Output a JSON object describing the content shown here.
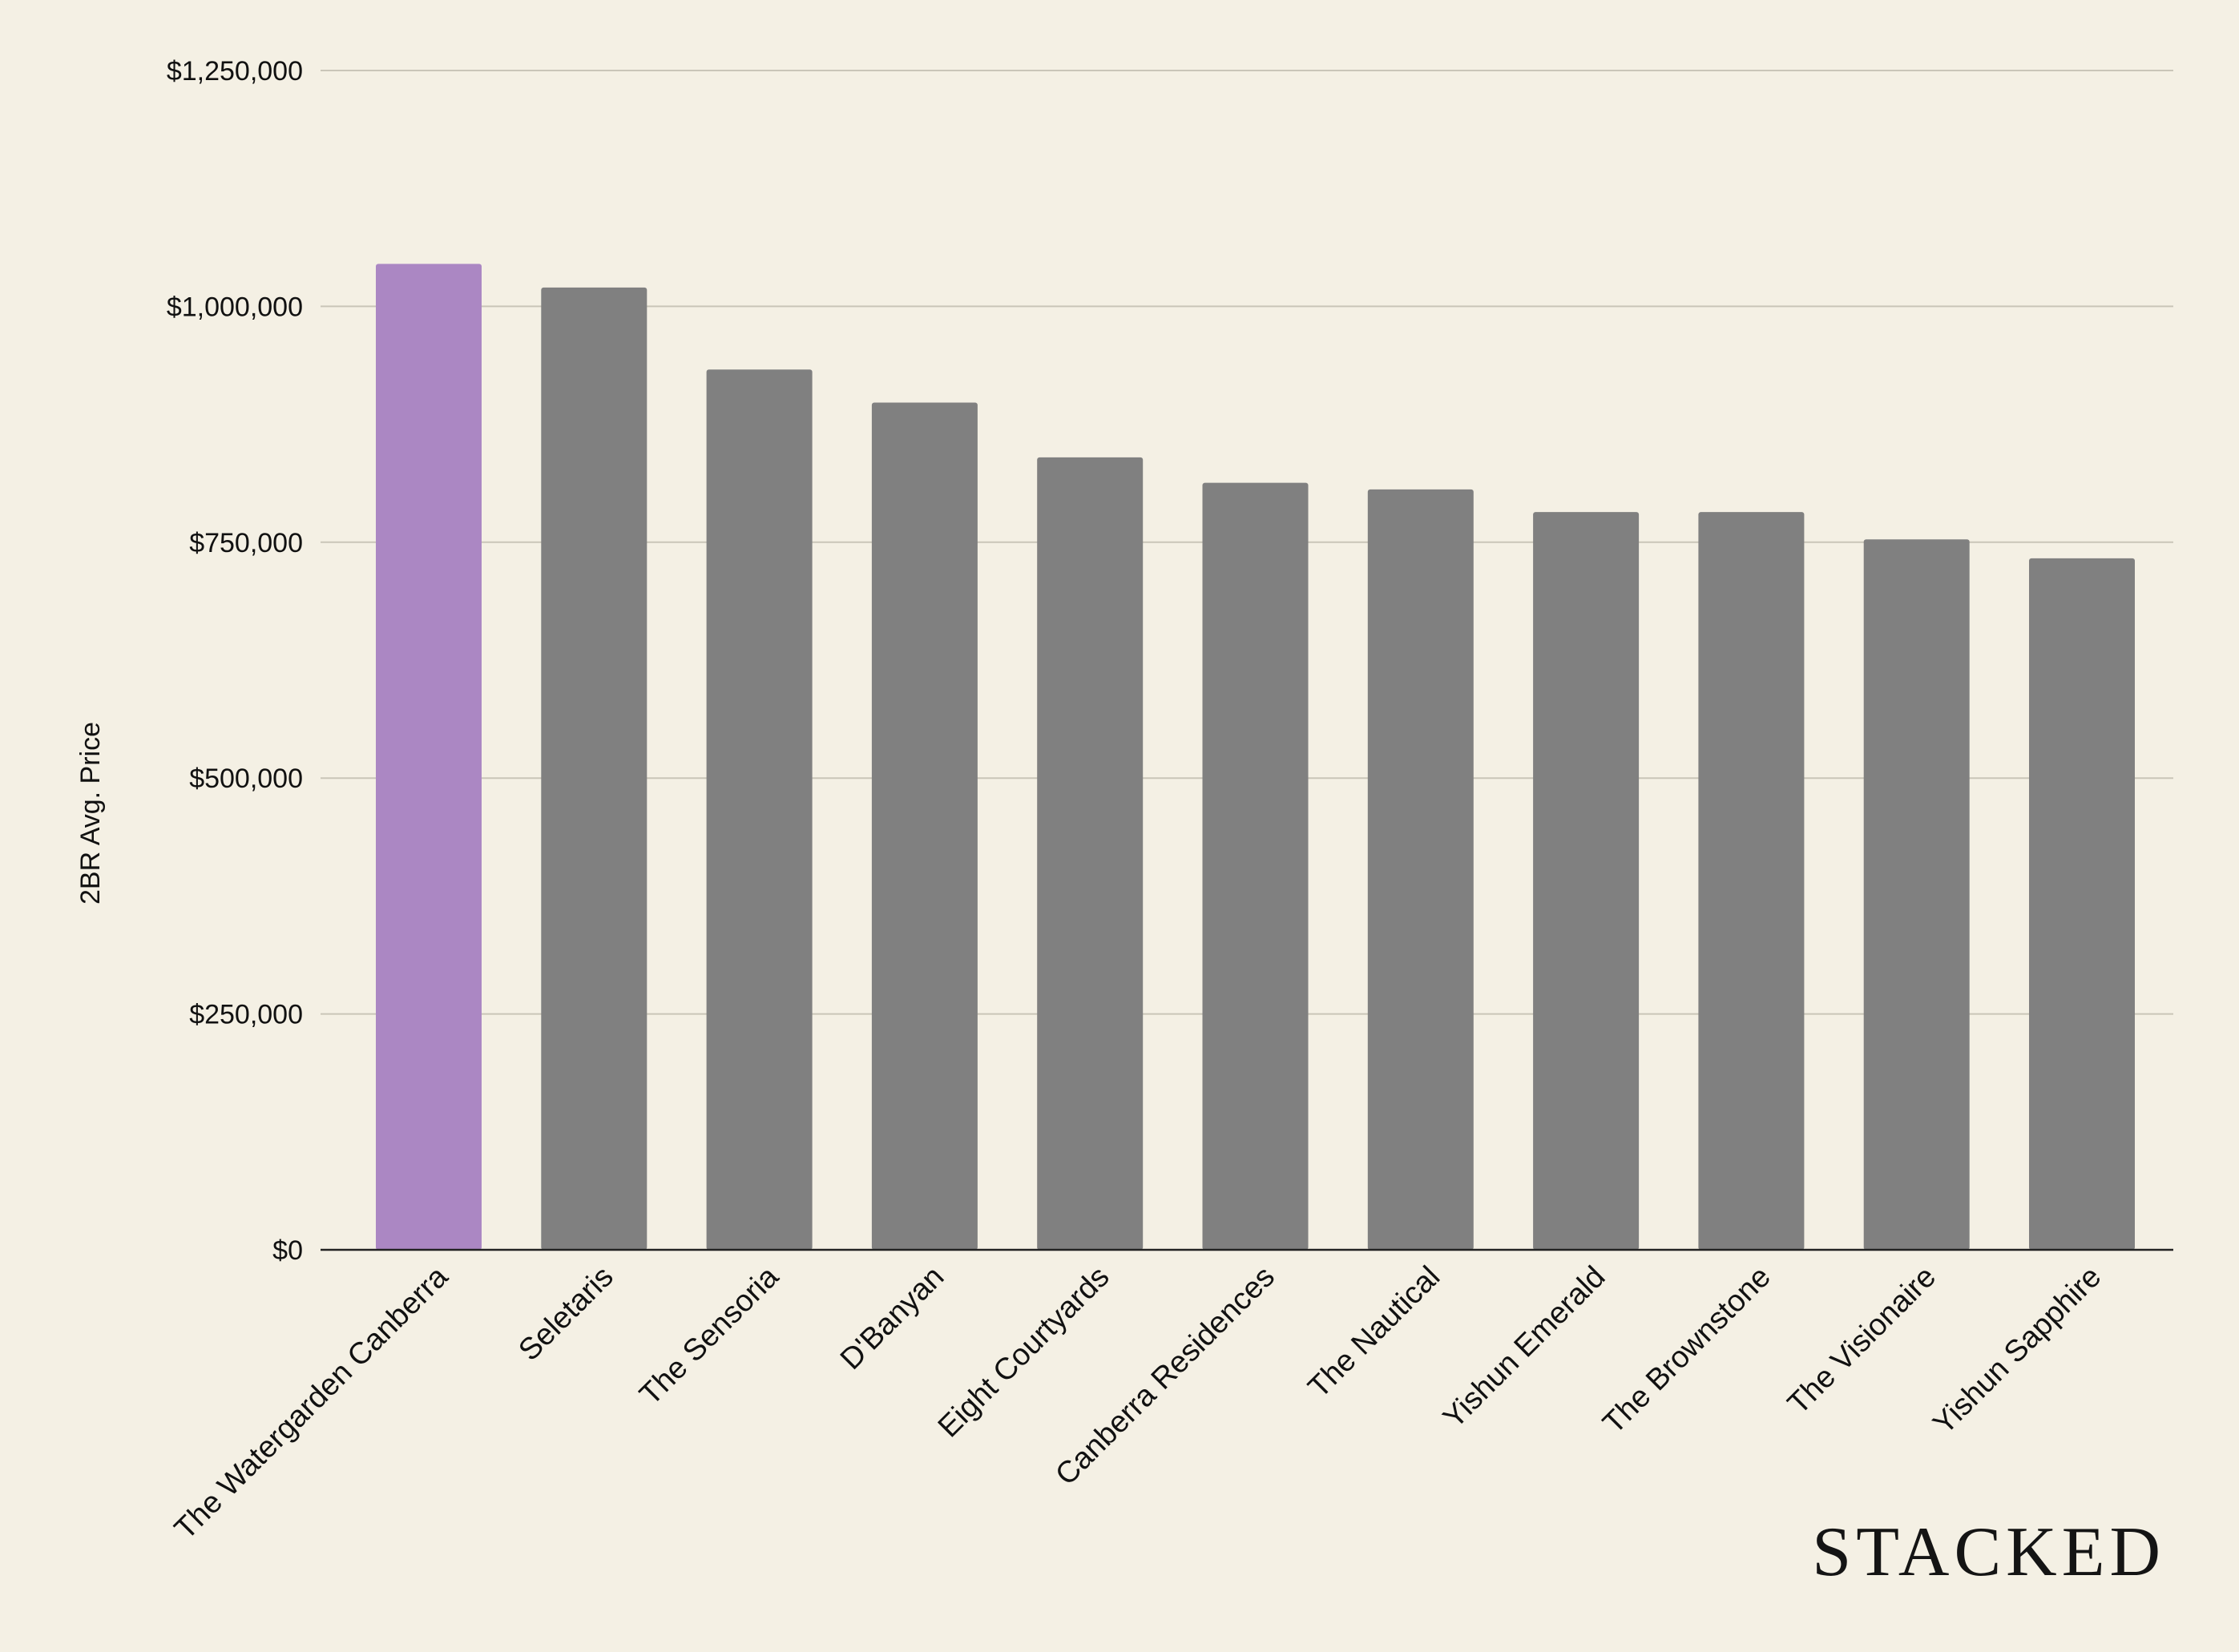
{
  "chart_data": {
    "type": "bar",
    "title": "",
    "xlabel": "",
    "ylabel": "2BR Avg. Price",
    "ylim": [
      0,
      1250000
    ],
    "yticks": [
      0,
      250000,
      500000,
      750000,
      1000000,
      1250000
    ],
    "ytick_labels": [
      "$0",
      "$250,000",
      "$500,000",
      "$750,000",
      "$1,000,000",
      "$1,250,000"
    ],
    "grid": true,
    "categories": [
      "The Watergarden Canberra",
      "Seletaris",
      "The Sensoria",
      "D'Banyan",
      "Eight Courtyards",
      "Canberra Residences",
      "The Nautical",
      "Yishun Emerald",
      "The Brownstone",
      "The Visionaire",
      "Yishun Sapphire"
    ],
    "values": [
      1045000,
      1020000,
      933000,
      898000,
      840000,
      813000,
      806000,
      782000,
      782000,
      753000,
      733000
    ],
    "highlight_index": 0,
    "colors": {
      "highlight": "#ab87c3",
      "bar": "#808080",
      "grid": "#c9c5b8",
      "axis": "#222222",
      "background": "#f4f0e4"
    }
  },
  "brand": {
    "logo_text": "STACKED"
  }
}
